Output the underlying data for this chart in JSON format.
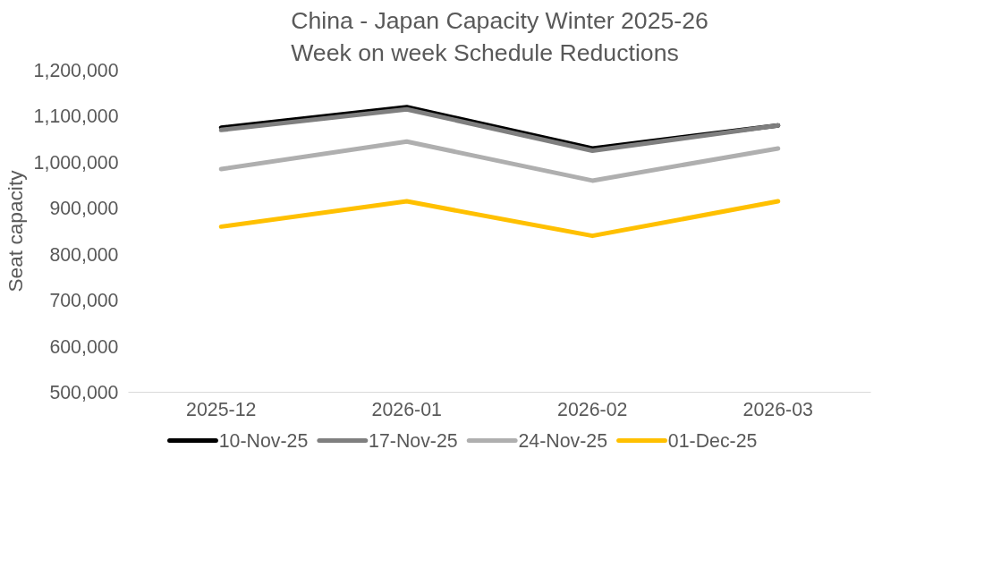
{
  "chart_data": {
    "type": "line",
    "title": "China - Japan Capacity Winter 2025-26\nWeek on week Schedule Reductions",
    "ylabel": "Seat capacity",
    "categories": [
      "2025-12",
      "2026-01",
      "2026-02",
      "2026-03"
    ],
    "series": [
      {
        "name": "10-Nov-25",
        "color": "#000000",
        "values": [
          1075000,
          1120000,
          1030000,
          1080000
        ]
      },
      {
        "name": "17-Nov-25",
        "color": "#7f7f7f",
        "values": [
          1070000,
          1115000,
          1025000,
          1080000
        ]
      },
      {
        "name": "24-Nov-25",
        "color": "#afafaf",
        "values": [
          985000,
          1045000,
          960000,
          1030000
        ]
      },
      {
        "name": "01-Dec-25",
        "color": "#ffc000",
        "values": [
          860000,
          915000,
          840000,
          915000
        ]
      }
    ],
    "ylim": [
      500000,
      1200000
    ],
    "yticks": [
      {
        "value": 500000,
        "label": "500,000"
      },
      {
        "value": 600000,
        "label": "600,000"
      },
      {
        "value": 700000,
        "label": "700,000"
      },
      {
        "value": 800000,
        "label": "800,000"
      },
      {
        "value": 900000,
        "label": "900,000"
      },
      {
        "value": 1000000,
        "label": "1,000,000"
      },
      {
        "value": 1100000,
        "label": "1,100,000"
      },
      {
        "value": 1200000,
        "label": "1,200,000"
      }
    ],
    "grid": false,
    "legend": "bottom",
    "marker": "none",
    "line_style": "solid"
  }
}
